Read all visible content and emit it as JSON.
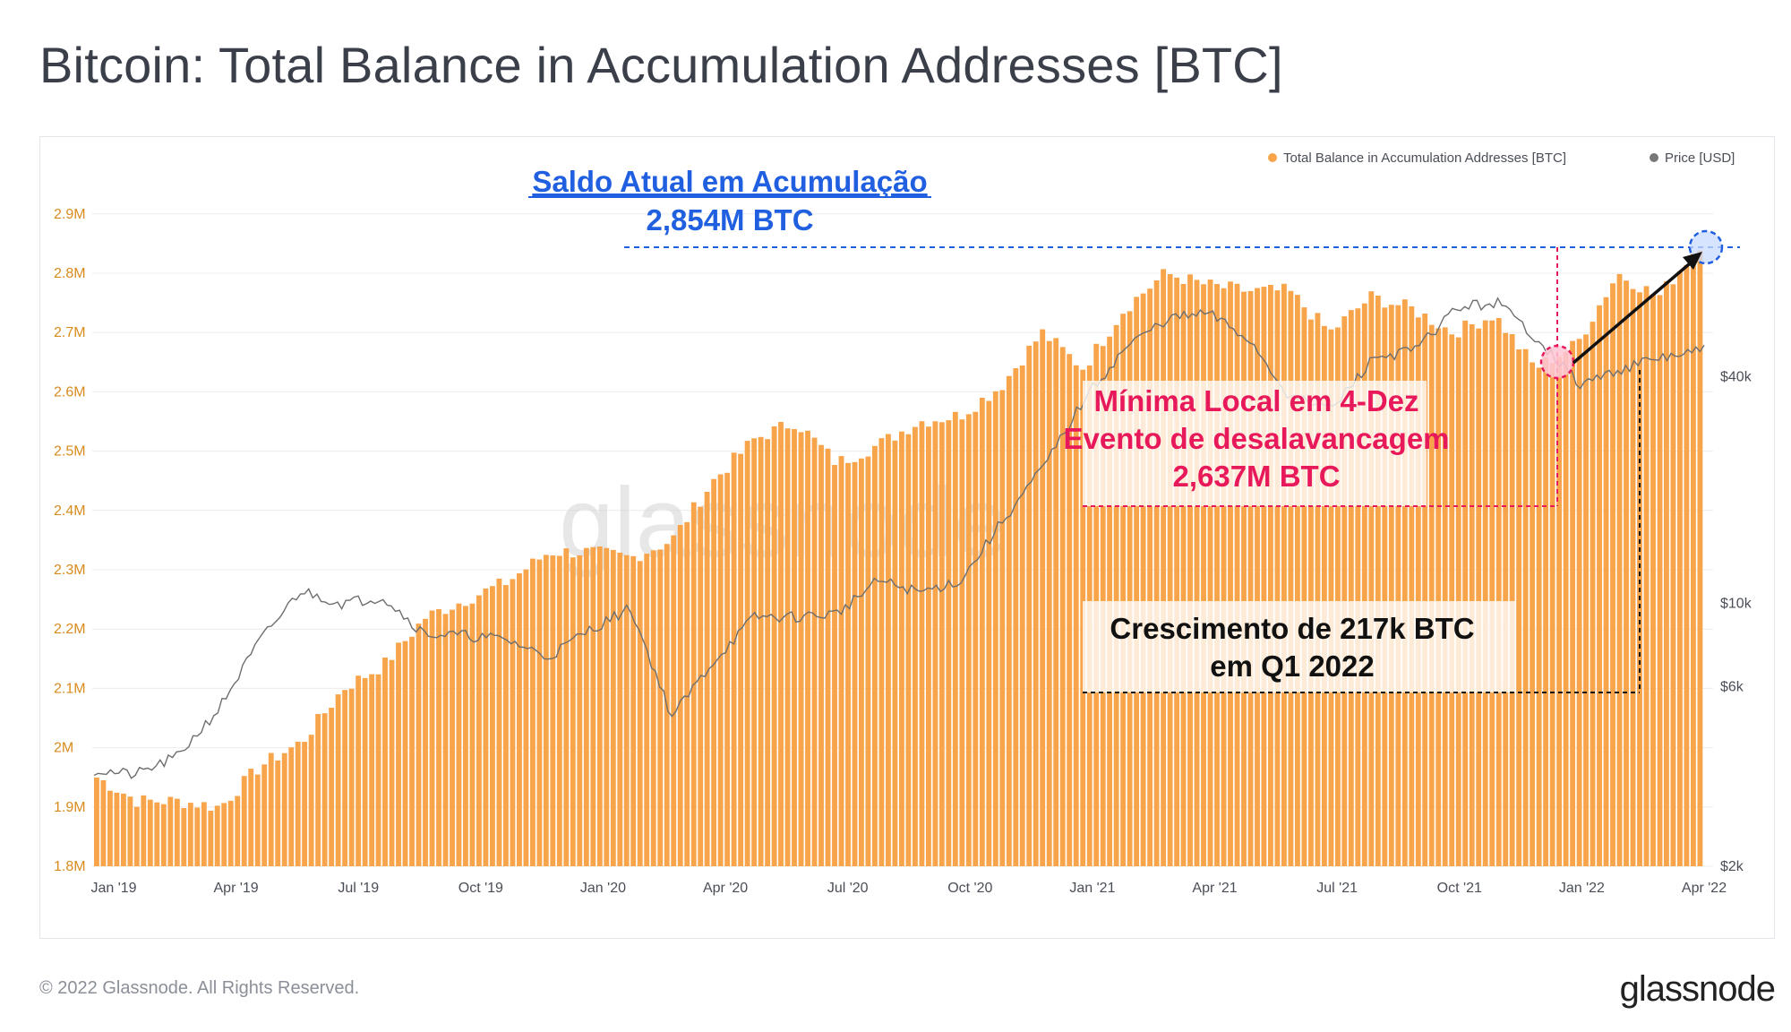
{
  "title": "Bitcoin: Total Balance in Accumulation Addresses [BTC]",
  "footer": "© 2022 Glassnode. All Rights Reserved.",
  "brand": "glassnode",
  "watermark": "glassnode",
  "colors": {
    "bar": "#f7a44a",
    "price": "#6e6e6e",
    "blue": "#1f5fe0",
    "pink": "#e8195a",
    "black": "#111111"
  },
  "chart_data": {
    "type": "bar",
    "title": "Bitcoin: Total Balance in Accumulation Addresses [BTC]",
    "legend": [
      {
        "label": "Total Balance in Accumulation Addresses [BTC]",
        "color": "#f7a44a"
      },
      {
        "label": "Price [USD]",
        "color": "#6e6e6e"
      }
    ],
    "legend_position": "top-right",
    "x_ticks": [
      "Jan '19",
      "Apr '19",
      "Jul '19",
      "Oct '19",
      "Jan '20",
      "Apr '20",
      "Jul '20",
      "Oct '20",
      "Jan '21",
      "Apr '21",
      "Jul '21",
      "Oct '21",
      "Jan '22",
      "Apr '22"
    ],
    "y_left_ticks": [
      "1.8M",
      "1.9M",
      "2M",
      "2.1M",
      "2.2M",
      "2.3M",
      "2.4M",
      "2.5M",
      "2.6M",
      "2.7M",
      "2.8M",
      "2.9M"
    ],
    "y_left_range": [
      1.8,
      2.94
    ],
    "y_right_ticks": [
      "$2k",
      "$6k",
      "$10k",
      "$40k"
    ],
    "y_right_scale": "log",
    "series": [
      {
        "name": "Total Balance in Accumulation Addresses [BTC]",
        "unit": "M BTC",
        "months": [
          "Jan '19",
          "Feb '19",
          "Mar '19",
          "Apr '19",
          "May '19",
          "Jun '19",
          "Jul '19",
          "Aug '19",
          "Sep '19",
          "Oct '19",
          "Nov '19",
          "Dec '19",
          "Jan '20",
          "Feb '20",
          "Mar '20",
          "Apr '20",
          "May '20",
          "Jun '20",
          "Jul '20",
          "Aug '20",
          "Sep '20",
          "Oct '20",
          "Nov '20",
          "Dec '20",
          "Jan '21",
          "Feb '21",
          "Mar '21",
          "Apr '21",
          "May '21",
          "Jun '21",
          "Jul '21",
          "Aug '21",
          "Sep '21",
          "Oct '21",
          "Nov '21",
          "Dec '21",
          "Jan '22",
          "Feb '22",
          "Mar '22",
          "Apr '22"
        ],
        "values": [
          1.95,
          1.91,
          1.91,
          1.9,
          1.97,
          2.01,
          2.1,
          2.14,
          2.22,
          2.25,
          2.28,
          2.33,
          2.33,
          2.32,
          2.35,
          2.45,
          2.52,
          2.55,
          2.48,
          2.51,
          2.55,
          2.56,
          2.61,
          2.7,
          2.64,
          2.74,
          2.8,
          2.78,
          2.77,
          2.77,
          2.7,
          2.76,
          2.74,
          2.7,
          2.73,
          2.64,
          2.68,
          2.8,
          2.76,
          2.85
        ]
      },
      {
        "name": "Price [USD]",
        "unit": "USD",
        "months": [
          "Jan '19",
          "Feb '19",
          "Mar '19",
          "Apr '19",
          "May '19",
          "Jun '19",
          "Jul '19",
          "Aug '19",
          "Sep '19",
          "Oct '19",
          "Nov '19",
          "Dec '19",
          "Jan '20",
          "Feb '20",
          "Mar '20",
          "Apr '20",
          "May '20",
          "Jun '20",
          "Jul '20",
          "Aug '20",
          "Sep '20",
          "Oct '20",
          "Nov '20",
          "Dec '20",
          "Jan '21",
          "Feb '21",
          "Mar '21",
          "Apr '21",
          "May '21",
          "Jun '21",
          "Jul '21",
          "Aug '21",
          "Sep '21",
          "Oct '21",
          "Nov '21",
          "Dec '21",
          "Jan '22",
          "Feb '22",
          "Mar '22",
          "Apr '22"
        ],
        "values": [
          3600,
          3500,
          3900,
          5200,
          7900,
          10800,
          10000,
          10400,
          8300,
          8200,
          8000,
          7200,
          8500,
          9700,
          5000,
          7000,
          9200,
          9200,
          9400,
          11500,
          10700,
          11500,
          16500,
          23000,
          35000,
          48000,
          57000,
          59000,
          50000,
          35000,
          33000,
          45000,
          47000,
          61000,
          63000,
          50000,
          38000,
          42000,
          45000,
          47000
        ]
      }
    ]
  },
  "annotations": {
    "current": {
      "line1": "Saldo Atual em Acumulação",
      "line2": "2,854M BTC",
      "value": 2.854
    },
    "local_min": {
      "line1": "Mínima Local em 4-Dez",
      "line2": "Evento de desalavancagem",
      "line3": "2,637M BTC",
      "value": 2.637
    },
    "growth": {
      "line1": "Crescimento de  217k BTC",
      "line2": "em Q1 2022"
    }
  }
}
